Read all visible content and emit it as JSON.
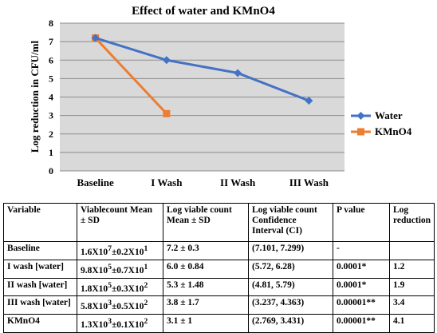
{
  "chart_data": {
    "type": "line",
    "title": "Effect of water and KMnO4",
    "xlabel": "",
    "ylabel": "Log reduction in CFU/ml",
    "categories": [
      "Baseline",
      "I Wash",
      "II Wash",
      "III Wash"
    ],
    "ylim": [
      0,
      8
    ],
    "yticks": [
      0,
      1,
      2,
      3,
      4,
      5,
      6,
      7,
      8
    ],
    "grid": true,
    "legend": "right",
    "series": [
      {
        "name": "Water",
        "color": "#4472c4",
        "marker": "diamond",
        "values": [
          7.2,
          6.0,
          5.3,
          3.8
        ]
      },
      {
        "name": "KMnO4",
        "color": "#ed7d31",
        "marker": "square",
        "values": [
          7.2,
          3.1,
          null,
          null
        ]
      }
    ]
  },
  "table": {
    "headers": [
      "Variable",
      "Viablecount Mean ± SD",
      "Log viable count Mean ± SD",
      "Log viable count Confidence Interval (CI)",
      "P value",
      "Log reduction"
    ],
    "rows": [
      {
        "variable": "Baseline",
        "mean_base": "1.6X10",
        "mean_exp": "7",
        "sd_base": "0.2X10",
        "sd_exp": "1",
        "log_mean": "7.2 ± 0.3",
        "ci": "(7.101, 7.299)",
        "p": "-",
        "reduction": ""
      },
      {
        "variable": "I wash [water]",
        "mean_base": "9.8X10",
        "mean_exp": "5",
        "sd_base": "0.7X10",
        "sd_exp": "1",
        "log_mean": "6.0 ± 0.84",
        "ci": "(5.72, 6.28)",
        "p": "0.0001*",
        "reduction": "1.2"
      },
      {
        "variable": "II wash [water]",
        "mean_base": "1.8X10",
        "mean_exp": "5",
        "sd_base": "0.3X10",
        "sd_exp": "2",
        "log_mean": "5.3 ± 1.48",
        "ci": "(4.81, 5.79)",
        "p": "0.0001*",
        "reduction": "1.9"
      },
      {
        "variable": "III wash [water]",
        "mean_base": "5.8X10",
        "mean_exp": "3",
        "sd_base": "0.5X10",
        "sd_exp": "2",
        "log_mean": "3.8 ± 1.7",
        "ci": "(3.237, 4.363)",
        "p": "0.00001**",
        "reduction": "3.4"
      },
      {
        "variable": "KMnO4",
        "mean_base": "1.3X10",
        "mean_exp": "3",
        "sd_base": "0.1X10",
        "sd_exp": "2",
        "log_mean": "3.1 ± 1",
        "ci": "(2.769, 3.431)",
        "p": "0.00001**",
        "reduction": "4.1"
      }
    ]
  }
}
